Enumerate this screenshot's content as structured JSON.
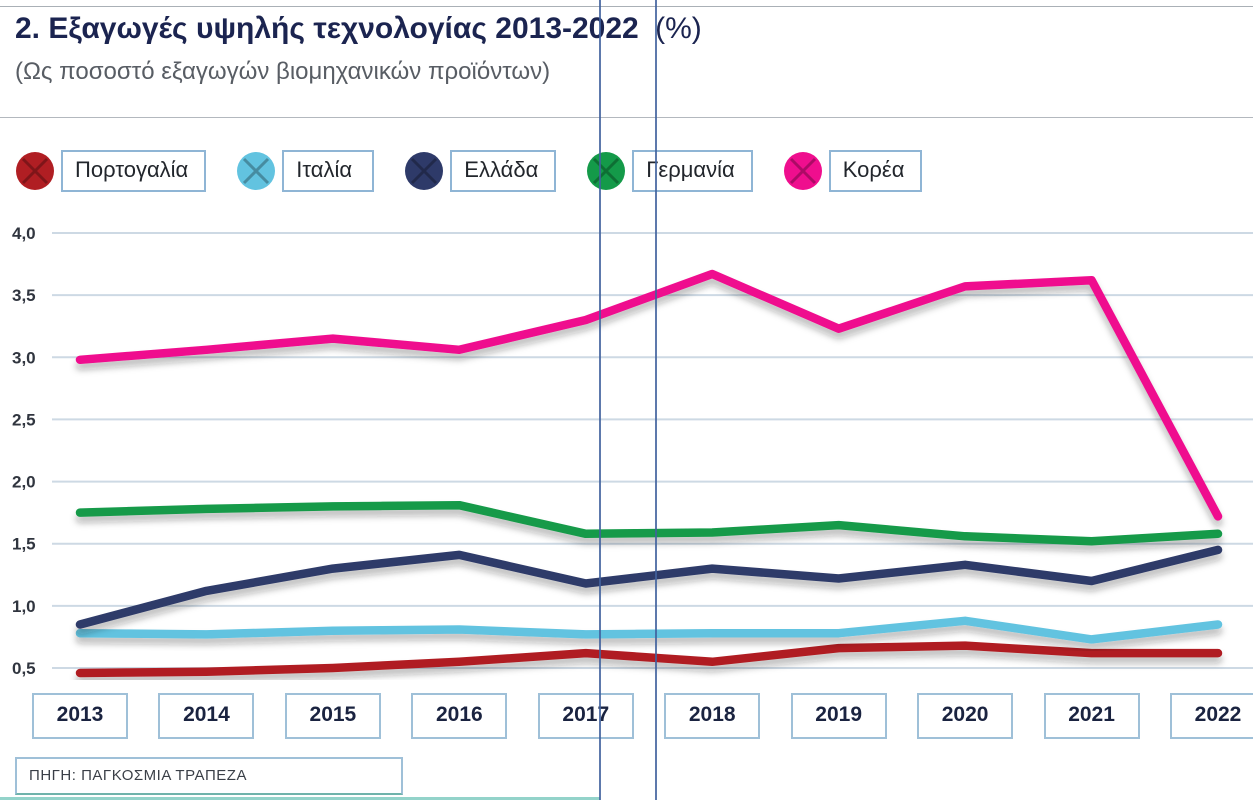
{
  "header": {
    "title": "2. Εξαγωγές υψηλής τεχνολογίας 2013-2022",
    "title_suffix": "(%)",
    "subtitle": "(Ως ποσοστό εξαγωγών βιομηχανικών προϊόντων)"
  },
  "legend": {
    "items": [
      {
        "label": "Πορτογαλία",
        "color": "#b01e23"
      },
      {
        "label": "Ιταλία",
        "color": "#62c3e0"
      },
      {
        "label": "Ελλάδα",
        "color": "#2e3a69"
      },
      {
        "label": "Γερμανία",
        "color": "#149a49"
      },
      {
        "label": "Κορέα",
        "color": "#ef0e8e"
      }
    ]
  },
  "chart_data": {
    "type": "line",
    "title": "2. Εξαγωγές υψηλής τεχνολογίας 2013-2022 (%)",
    "subtitle": "(Ως ποσοστό εξαγωγών βιομηχανικών προϊόντων)",
    "xlabel": "",
    "ylabel": "",
    "x": [
      2013,
      2014,
      2015,
      2016,
      2017,
      2018,
      2019,
      2020,
      2021,
      2022
    ],
    "ylim": [
      0.5,
      4.0
    ],
    "grid": true,
    "legend_position": "top",
    "yticks": [
      {
        "value": 4.0,
        "label": "4,0"
      },
      {
        "value": 3.5,
        "label": "3,5"
      },
      {
        "value": 3.0,
        "label": "3,0"
      },
      {
        "value": 2.5,
        "label": "2,5"
      },
      {
        "value": 2.0,
        "label": "2,0"
      },
      {
        "value": 1.5,
        "label": "1,5"
      },
      {
        "value": 1.0,
        "label": "1,0"
      },
      {
        "value": 0.5,
        "label": "0,5"
      }
    ],
    "series": [
      {
        "name": "Πορτογαλία",
        "color": "#b01e23",
        "values": [
          0.46,
          0.47,
          0.5,
          0.55,
          0.62,
          0.55,
          0.66,
          0.68,
          0.62,
          0.62
        ]
      },
      {
        "name": "Ιταλία",
        "color": "#62c3e0",
        "values": [
          0.78,
          0.77,
          0.8,
          0.81,
          0.77,
          0.78,
          0.78,
          0.88,
          0.73,
          0.85
        ]
      },
      {
        "name": "Ελλάδα",
        "color": "#2e3a69",
        "values": [
          0.85,
          1.12,
          1.3,
          1.41,
          1.18,
          1.3,
          1.22,
          1.33,
          1.2,
          1.45
        ]
      },
      {
        "name": "Γερμανία",
        "color": "#149a49",
        "values": [
          1.75,
          1.78,
          1.8,
          1.81,
          1.58,
          1.59,
          1.65,
          1.56,
          1.52,
          1.58
        ]
      },
      {
        "name": "Κορέα",
        "color": "#ef0e8e",
        "values": [
          2.98,
          3.06,
          3.15,
          3.06,
          3.3,
          3.67,
          3.23,
          3.57,
          3.62,
          1.72
        ]
      }
    ]
  },
  "footer": {
    "source": "ΠΗΓΗ: ΠΑΓΚΟΣΜΙΑ ΤΡΑΠΕΖΑ"
  }
}
